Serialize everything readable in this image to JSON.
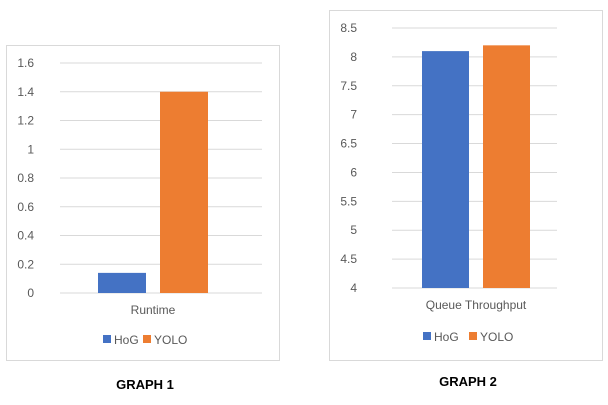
{
  "colors": {
    "hog": "#4472C4",
    "yolo": "#ED7D31",
    "grid": "#D9D9D9",
    "border": "#D9D9D9",
    "text": "#595959"
  },
  "chart_data": [
    {
      "type": "bar",
      "caption": "GRAPH 1",
      "categories": [
        "Runtime"
      ],
      "series": [
        {
          "name": "HoG",
          "values": [
            0.14
          ]
        },
        {
          "name": "YOLO",
          "values": [
            1.4
          ]
        }
      ],
      "ylim": [
        0,
        1.6
      ],
      "yticks": [
        "0",
        "0.2",
        "0.4",
        "0.6",
        "0.8",
        "1",
        "1.2",
        "1.4",
        "1.6"
      ],
      "grid": true,
      "legend": "bottom"
    },
    {
      "type": "bar",
      "caption": "GRAPH 2",
      "categories": [
        "Queue Throughput"
      ],
      "series": [
        {
          "name": "HoG",
          "values": [
            8.1
          ]
        },
        {
          "name": "YOLO",
          "values": [
            8.2
          ]
        }
      ],
      "ylim": [
        4,
        8.5
      ],
      "yticks": [
        "4",
        "4.5",
        "5",
        "5.5",
        "6",
        "6.5",
        "7",
        "7.5",
        "8",
        "8.5"
      ],
      "grid": true,
      "legend": "bottom"
    }
  ]
}
